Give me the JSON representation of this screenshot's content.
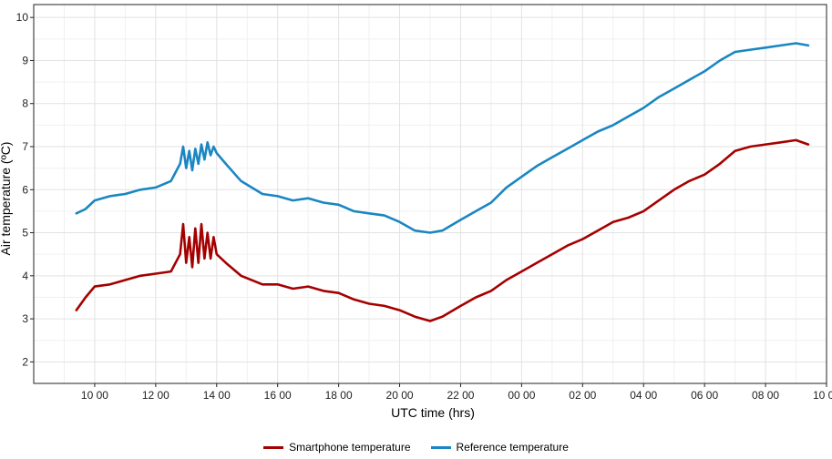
{
  "chart_data": {
    "type": "line",
    "xlabel": "UTC time (hrs)",
    "ylabel": "Air temperature (ºC)",
    "x_unit": "hours since 00 00 of day 1 (UTC)",
    "xlim": [
      8.0,
      34.0
    ],
    "ylim": [
      1.5,
      10.3
    ],
    "yticks": [
      2,
      3,
      4,
      5,
      6,
      7,
      8,
      9,
      10
    ],
    "xticks": [
      {
        "x": 10,
        "label": "10 00"
      },
      {
        "x": 12,
        "label": "12 00"
      },
      {
        "x": 14,
        "label": "14 00"
      },
      {
        "x": 16,
        "label": "16 00"
      },
      {
        "x": 18,
        "label": "18 00"
      },
      {
        "x": 20,
        "label": "20 00"
      },
      {
        "x": 22,
        "label": "22 00"
      },
      {
        "x": 24,
        "label": "00 00"
      },
      {
        "x": 26,
        "label": "02 00"
      },
      {
        "x": 28,
        "label": "04 00"
      },
      {
        "x": 30,
        "label": "06 00"
      },
      {
        "x": 32,
        "label": "08 00"
      },
      {
        "x": 34,
        "label": "10 00"
      }
    ],
    "grid": true,
    "legend_position": "bottom",
    "series": [
      {
        "name": "Smartphone temperature",
        "color": "#A50000",
        "points": [
          [
            9.4,
            3.2
          ],
          [
            9.7,
            3.5
          ],
          [
            10.0,
            3.75
          ],
          [
            10.5,
            3.8
          ],
          [
            11.0,
            3.9
          ],
          [
            11.5,
            4.0
          ],
          [
            12.0,
            4.05
          ],
          [
            12.5,
            4.1
          ],
          [
            12.8,
            4.5
          ],
          [
            12.9,
            5.2
          ],
          [
            13.0,
            4.3
          ],
          [
            13.1,
            4.9
          ],
          [
            13.2,
            4.2
          ],
          [
            13.3,
            5.1
          ],
          [
            13.4,
            4.3
          ],
          [
            13.5,
            5.2
          ],
          [
            13.6,
            4.4
          ],
          [
            13.7,
            5.0
          ],
          [
            13.8,
            4.4
          ],
          [
            13.9,
            4.9
          ],
          [
            14.0,
            4.5
          ],
          [
            14.3,
            4.3
          ],
          [
            14.8,
            4.0
          ],
          [
            15.5,
            3.8
          ],
          [
            16.0,
            3.8
          ],
          [
            16.5,
            3.7
          ],
          [
            17.0,
            3.75
          ],
          [
            17.5,
            3.65
          ],
          [
            18.0,
            3.6
          ],
          [
            18.5,
            3.45
          ],
          [
            19.0,
            3.35
          ],
          [
            19.5,
            3.3
          ],
          [
            20.0,
            3.2
          ],
          [
            20.5,
            3.05
          ],
          [
            21.0,
            2.95
          ],
          [
            21.4,
            3.05
          ],
          [
            22.0,
            3.3
          ],
          [
            22.5,
            3.5
          ],
          [
            23.0,
            3.65
          ],
          [
            23.5,
            3.9
          ],
          [
            24.0,
            4.1
          ],
          [
            24.5,
            4.3
          ],
          [
            25.0,
            4.5
          ],
          [
            25.5,
            4.7
          ],
          [
            26.0,
            4.85
          ],
          [
            26.5,
            5.05
          ],
          [
            27.0,
            5.25
          ],
          [
            27.5,
            5.35
          ],
          [
            28.0,
            5.5
          ],
          [
            28.5,
            5.75
          ],
          [
            29.0,
            6.0
          ],
          [
            29.5,
            6.2
          ],
          [
            30.0,
            6.35
          ],
          [
            30.5,
            6.6
          ],
          [
            31.0,
            6.9
          ],
          [
            31.5,
            7.0
          ],
          [
            32.0,
            7.05
          ],
          [
            32.5,
            7.1
          ],
          [
            33.0,
            7.15
          ],
          [
            33.4,
            7.05
          ]
        ]
      },
      {
        "name": "Reference temperature",
        "color": "#1A86C2",
        "points": [
          [
            9.4,
            5.45
          ],
          [
            9.7,
            5.55
          ],
          [
            10.0,
            5.75
          ],
          [
            10.5,
            5.85
          ],
          [
            11.0,
            5.9
          ],
          [
            11.5,
            6.0
          ],
          [
            12.0,
            6.05
          ],
          [
            12.5,
            6.2
          ],
          [
            12.8,
            6.6
          ],
          [
            12.9,
            7.0
          ],
          [
            13.0,
            6.5
          ],
          [
            13.1,
            6.9
          ],
          [
            13.2,
            6.45
          ],
          [
            13.3,
            6.95
          ],
          [
            13.4,
            6.6
          ],
          [
            13.5,
            7.05
          ],
          [
            13.6,
            6.7
          ],
          [
            13.7,
            7.1
          ],
          [
            13.8,
            6.8
          ],
          [
            13.9,
            7.0
          ],
          [
            14.0,
            6.85
          ],
          [
            14.3,
            6.6
          ],
          [
            14.8,
            6.2
          ],
          [
            15.5,
            5.9
          ],
          [
            16.0,
            5.85
          ],
          [
            16.5,
            5.75
          ],
          [
            17.0,
            5.8
          ],
          [
            17.5,
            5.7
          ],
          [
            18.0,
            5.65
          ],
          [
            18.5,
            5.5
          ],
          [
            19.0,
            5.45
          ],
          [
            19.5,
            5.4
          ],
          [
            20.0,
            5.25
          ],
          [
            20.5,
            5.05
          ],
          [
            21.0,
            5.0
          ],
          [
            21.4,
            5.05
          ],
          [
            22.0,
            5.3
          ],
          [
            22.5,
            5.5
          ],
          [
            23.0,
            5.7
          ],
          [
            23.5,
            6.05
          ],
          [
            24.0,
            6.3
          ],
          [
            24.5,
            6.55
          ],
          [
            25.0,
            6.75
          ],
          [
            25.5,
            6.95
          ],
          [
            26.0,
            7.15
          ],
          [
            26.5,
            7.35
          ],
          [
            27.0,
            7.5
          ],
          [
            27.5,
            7.7
          ],
          [
            28.0,
            7.9
          ],
          [
            28.5,
            8.15
          ],
          [
            29.0,
            8.35
          ],
          [
            29.5,
            8.55
          ],
          [
            30.0,
            8.75
          ],
          [
            30.5,
            9.0
          ],
          [
            31.0,
            9.2
          ],
          [
            31.5,
            9.25
          ],
          [
            32.0,
            9.3
          ],
          [
            32.5,
            9.35
          ],
          [
            33.0,
            9.4
          ],
          [
            33.4,
            9.35
          ]
        ]
      }
    ]
  }
}
